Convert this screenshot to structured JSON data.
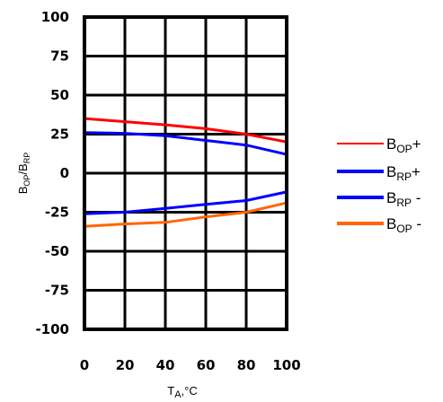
{
  "chart_data": {
    "type": "line",
    "xlabel_main": "T",
    "xlabel_sub": "A",
    "xlabel_rest": ",°C",
    "ylabel_b1": "B",
    "ylabel_sub1": "OP",
    "ylabel_mid": "/B",
    "ylabel_sub2": "RP",
    "xlim": [
      0,
      100
    ],
    "ylim": [
      -100,
      100
    ],
    "x_ticks": [
      "0",
      "20",
      "40",
      "60",
      "80",
      "100"
    ],
    "y_ticks": [
      "100",
      "75",
      "50",
      "25",
      "0",
      "-25",
      "-50",
      "-75",
      "-100"
    ],
    "grid": true,
    "legend_position": "right",
    "x": [
      0,
      20,
      40,
      60,
      80,
      100
    ],
    "series": [
      {
        "name": "B OP+",
        "main": "B",
        "sub": "OP",
        "suffix": "+",
        "color": "#ff0000",
        "values": [
          35,
          33,
          31,
          28.5,
          25,
          20
        ]
      },
      {
        "name": "B RP+",
        "main": "B",
        "sub": "RP",
        "suffix": "+",
        "color": "#0000ff",
        "values": [
          26,
          25.5,
          24,
          21,
          18,
          12
        ]
      },
      {
        "name": "B RP -",
        "main": "B",
        "sub": "RP",
        "suffix": " -",
        "color": "#0000ff",
        "values": [
          -26,
          -25,
          -22.5,
          -20,
          -17.5,
          -12
        ]
      },
      {
        "name": "B OP -",
        "main": "B",
        "sub": "OP",
        "suffix": " -",
        "color": "#ff6600",
        "values": [
          -34,
          -32.5,
          -31.5,
          -28,
          -25,
          -19
        ]
      }
    ]
  }
}
